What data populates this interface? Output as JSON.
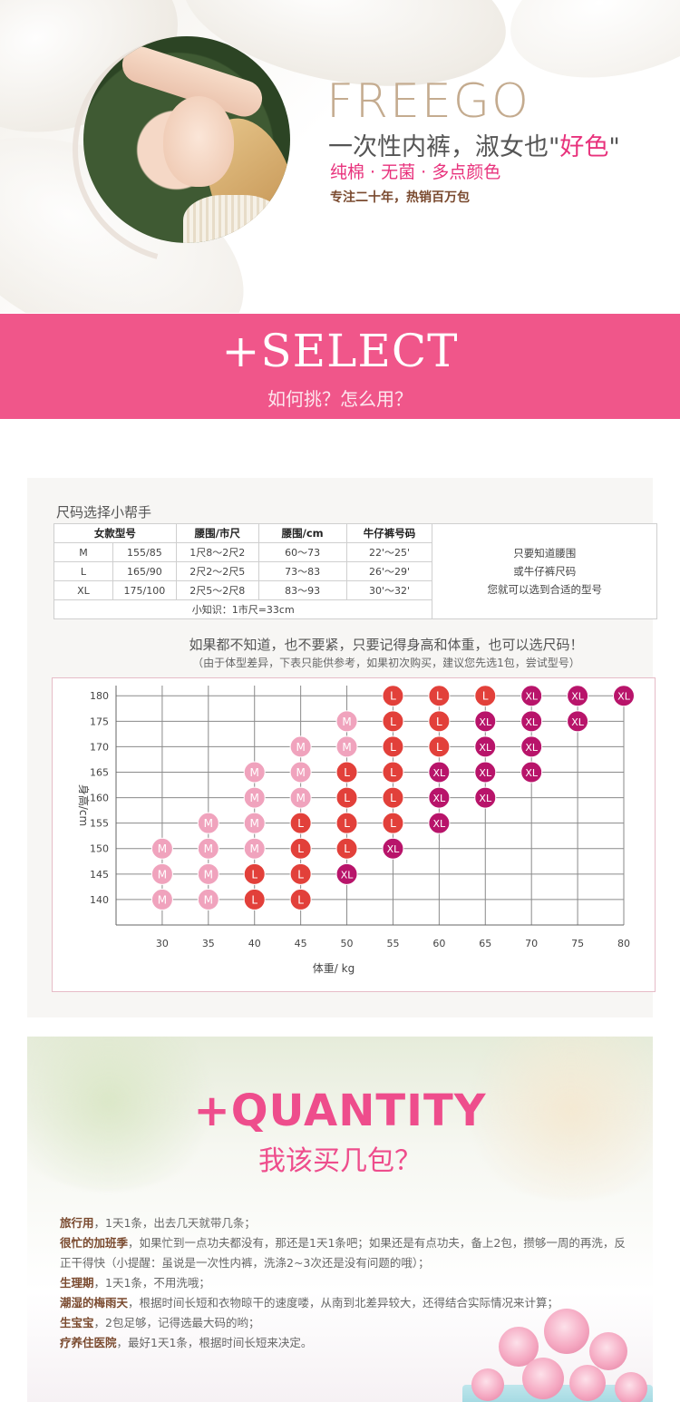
{
  "hero": {
    "brand": "FREEGO",
    "slogan_main": "一次性内裤，淑女也\"",
    "slogan_pink": "好色",
    "slogan_end": "\"",
    "features": "纯棉 · 无菌 · 多点颜色",
    "promo": "专注二十年，热销百万包"
  },
  "select": {
    "title": "+SELECT",
    "subtitle": "如何挑？怎么用？"
  },
  "size_helper": {
    "heading": "尺码选择小帮手",
    "headers": [
      "女款型号",
      "腰围/市尺",
      "腰围/cm",
      "牛仔裤号码"
    ],
    "rows": [
      {
        "size": "M",
        "height": "155/85",
        "waist_chi": "1尺8～2尺2",
        "waist_cm": "60～73",
        "jeans": "22'～25'"
      },
      {
        "size": "L",
        "height": "165/90",
        "waist_chi": "2尺2～2尺5",
        "waist_cm": "73～83",
        "jeans": "26'～29'"
      },
      {
        "size": "XL",
        "height": "175/100",
        "waist_chi": "2尺5～2尺8",
        "waist_cm": "83～93",
        "jeans": "30'～32'"
      }
    ],
    "tip": "小知识：1市尺=33cm",
    "side_note": [
      "只要知道腰围",
      "或牛仔裤尺码",
      "您就可以选到合适的型号"
    ],
    "note_a": "如果都不知道，也不要紧，只要记得身高和体重，也可以选尺码！",
    "note_b": "（由于体型差异，下表只能供参考，如果初次购买，建议您先选1包，尝试型号）"
  },
  "chart_data": {
    "type": "scatter",
    "xlabel": "体重/ kg",
    "ylabel": "身高/cm",
    "x_ticks": [
      30,
      35,
      40,
      45,
      50,
      55,
      60,
      65,
      70,
      75,
      80
    ],
    "y_ticks": [
      140,
      145,
      150,
      155,
      160,
      165,
      170,
      175,
      180
    ],
    "xlim": [
      25,
      80
    ],
    "ylim": [
      135,
      182
    ],
    "grid": true,
    "colors": {
      "M": "#f0a3bd",
      "L": "#e2403a",
      "XL": "#b8146a"
    },
    "points": [
      {
        "x": 30,
        "y": 140,
        "label": "M"
      },
      {
        "x": 30,
        "y": 145,
        "label": "M"
      },
      {
        "x": 30,
        "y": 150,
        "label": "M"
      },
      {
        "x": 35,
        "y": 140,
        "label": "M"
      },
      {
        "x": 35,
        "y": 145,
        "label": "M"
      },
      {
        "x": 35,
        "y": 150,
        "label": "M"
      },
      {
        "x": 35,
        "y": 155,
        "label": "M"
      },
      {
        "x": 40,
        "y": 140,
        "label": "L"
      },
      {
        "x": 40,
        "y": 145,
        "label": "L"
      },
      {
        "x": 40,
        "y": 150,
        "label": "M"
      },
      {
        "x": 40,
        "y": 155,
        "label": "M"
      },
      {
        "x": 40,
        "y": 160,
        "label": "M"
      },
      {
        "x": 40,
        "y": 165,
        "label": "M"
      },
      {
        "x": 45,
        "y": 140,
        "label": "L"
      },
      {
        "x": 45,
        "y": 145,
        "label": "L"
      },
      {
        "x": 45,
        "y": 150,
        "label": "L"
      },
      {
        "x": 45,
        "y": 155,
        "label": "L"
      },
      {
        "x": 45,
        "y": 160,
        "label": "M"
      },
      {
        "x": 45,
        "y": 165,
        "label": "M"
      },
      {
        "x": 45,
        "y": 170,
        "label": "M"
      },
      {
        "x": 50,
        "y": 145,
        "label": "XL"
      },
      {
        "x": 50,
        "y": 150,
        "label": "L"
      },
      {
        "x": 50,
        "y": 155,
        "label": "L"
      },
      {
        "x": 50,
        "y": 160,
        "label": "L"
      },
      {
        "x": 50,
        "y": 165,
        "label": "L"
      },
      {
        "x": 50,
        "y": 170,
        "label": "M"
      },
      {
        "x": 50,
        "y": 175,
        "label": "M"
      },
      {
        "x": 55,
        "y": 150,
        "label": "XL"
      },
      {
        "x": 55,
        "y": 155,
        "label": "L"
      },
      {
        "x": 55,
        "y": 160,
        "label": "L"
      },
      {
        "x": 55,
        "y": 165,
        "label": "L"
      },
      {
        "x": 55,
        "y": 170,
        "label": "L"
      },
      {
        "x": 55,
        "y": 175,
        "label": "L"
      },
      {
        "x": 55,
        "y": 180,
        "label": "L"
      },
      {
        "x": 60,
        "y": 155,
        "label": "XL"
      },
      {
        "x": 60,
        "y": 160,
        "label": "XL"
      },
      {
        "x": 60,
        "y": 165,
        "label": "XL"
      },
      {
        "x": 60,
        "y": 170,
        "label": "L"
      },
      {
        "x": 60,
        "y": 175,
        "label": "L"
      },
      {
        "x": 60,
        "y": 180,
        "label": "L"
      },
      {
        "x": 65,
        "y": 160,
        "label": "XL"
      },
      {
        "x": 65,
        "y": 165,
        "label": "XL"
      },
      {
        "x": 65,
        "y": 170,
        "label": "XL"
      },
      {
        "x": 65,
        "y": 175,
        "label": "XL"
      },
      {
        "x": 65,
        "y": 180,
        "label": "L"
      },
      {
        "x": 70,
        "y": 165,
        "label": "XL"
      },
      {
        "x": 70,
        "y": 170,
        "label": "XL"
      },
      {
        "x": 70,
        "y": 175,
        "label": "XL"
      },
      {
        "x": 70,
        "y": 180,
        "label": "XL"
      },
      {
        "x": 75,
        "y": 175,
        "label": "XL"
      },
      {
        "x": 75,
        "y": 180,
        "label": "XL"
      },
      {
        "x": 80,
        "y": 180,
        "label": "XL"
      }
    ]
  },
  "quantity": {
    "title": "+QUANTITY",
    "subtitle": "我该买几包？",
    "lines": [
      {
        "bold": "旅行用",
        "text": "，1天1条，出去几天就带几条；"
      },
      {
        "bold": "很忙的加班季",
        "text": "，如果忙到一点功夫都没有，那还是1天1条吧；如果还是有点功夫，备上2包，攒够一周的再洗，反正干得快（小提醒：虽说是一次性内裤，洗涤2~3次还是没有问题的哦）；"
      },
      {
        "bold": "生理期",
        "text": "，1天1条，不用洗哦；"
      },
      {
        "bold": "潮湿的梅雨天",
        "text": "，根据时间长短和衣物晾干的速度喽，从南到北差异较大，还得结合实际情况来计算；"
      },
      {
        "bold": "生宝宝",
        "text": "，2包足够，记得选最大码的哟；"
      },
      {
        "bold": "疗养住医院",
        "text": "，最好1天1条，根据时间长短来决定。"
      }
    ]
  }
}
